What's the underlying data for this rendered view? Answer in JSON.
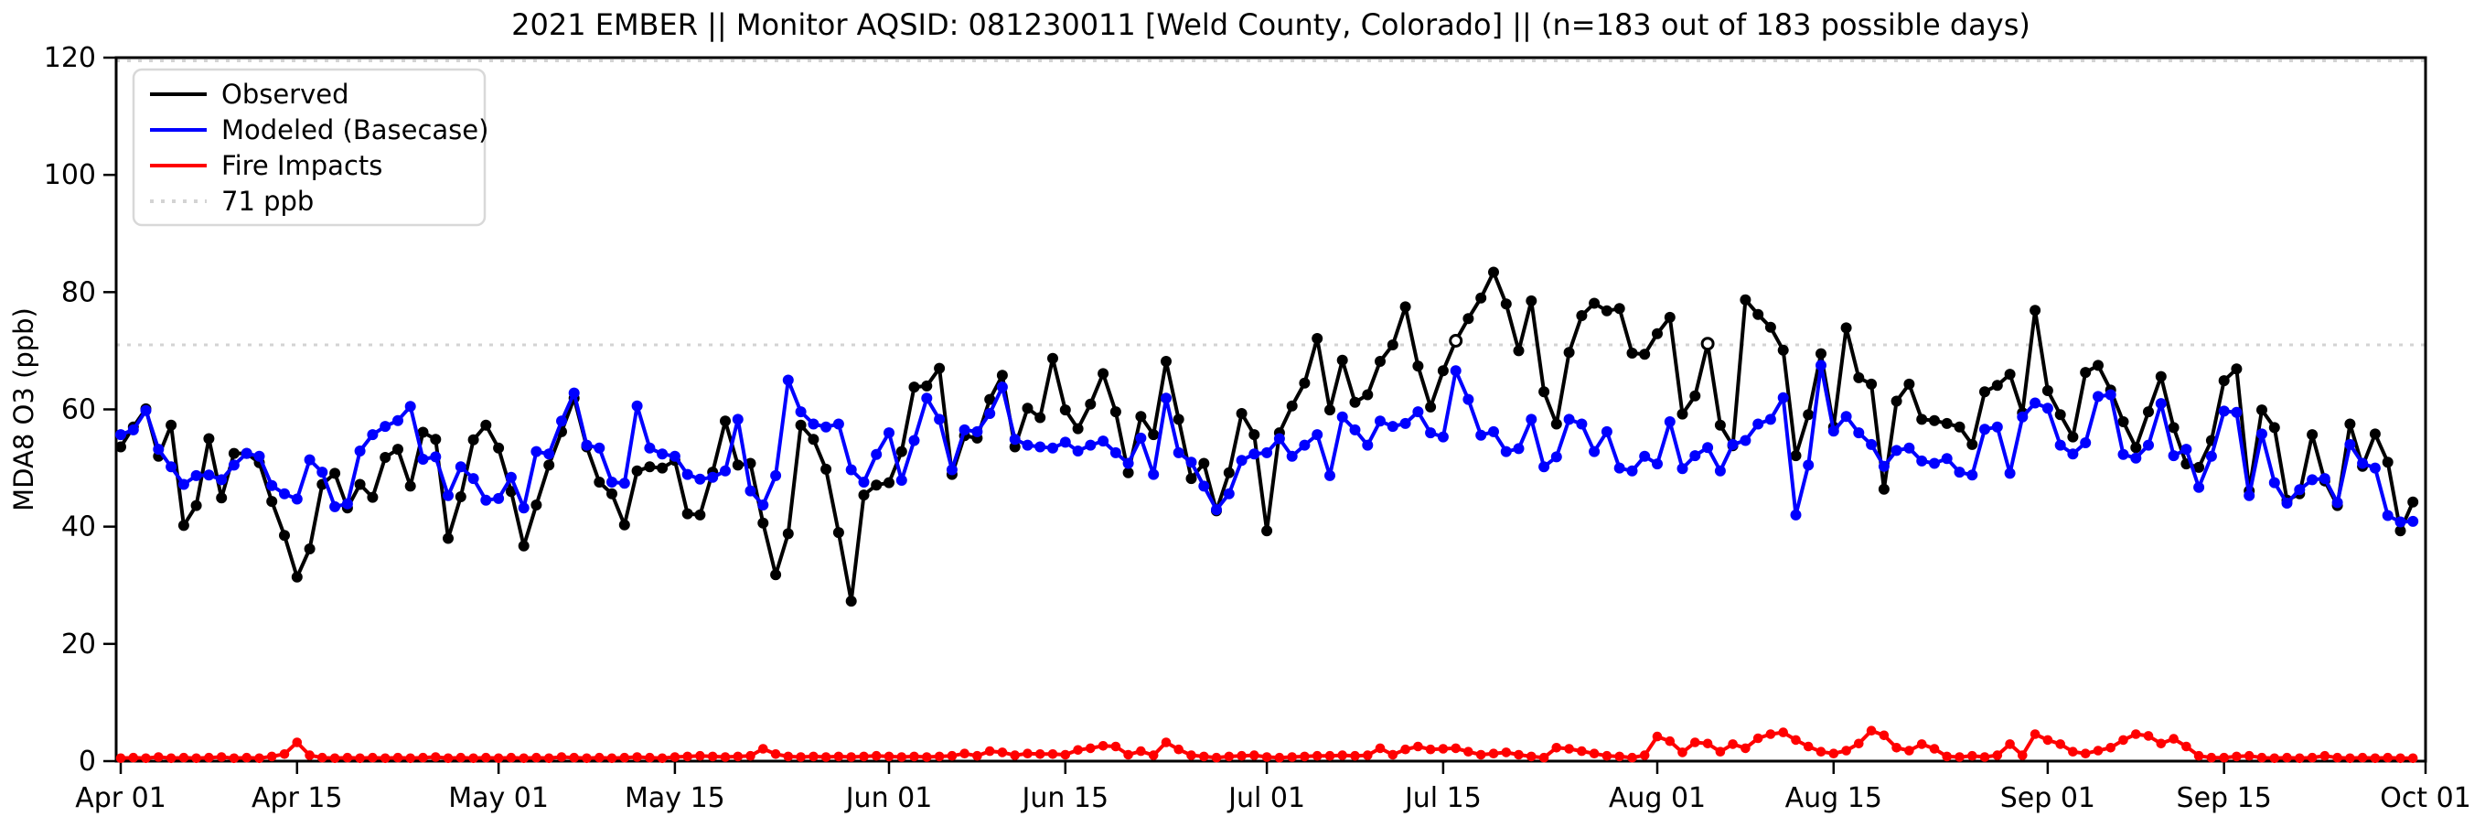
{
  "title": "2021 EMBER || Monitor AQSID: 081230011 [Weld County, Colorado] || (n=183 out of 183 possible days)",
  "axes": {
    "ylabel": "MDA8 O3 (ppb)",
    "ylim": [
      0,
      120
    ],
    "yticks": [
      0,
      20,
      40,
      60,
      80,
      100,
      120
    ],
    "xtick_labels": [
      "Apr 01",
      "Apr 15",
      "May 01",
      "May 15",
      "Jun 01",
      "Jun 15",
      "Jul 01",
      "Jul 15",
      "Aug 01",
      "Aug 15",
      "Sep 01",
      "Sep 15",
      "Oct 01"
    ],
    "xtick_days": [
      0,
      14,
      30,
      44,
      61,
      75,
      91,
      105,
      122,
      136,
      153,
      167,
      183
    ]
  },
  "legend": {
    "items": [
      {
        "label": "Observed",
        "color": "#000000",
        "style": "solid"
      },
      {
        "label": "Modeled (Basecase)",
        "color": "#0000ff",
        "style": "solid"
      },
      {
        "label": "Fire Impacts",
        "color": "#ff0000",
        "style": "solid"
      },
      {
        "label": "71 ppb",
        "color": "#d3d3d3",
        "style": "dotted"
      }
    ]
  },
  "threshold": {
    "value": 71,
    "label": "71 ppb",
    "color": "#d3d3d3"
  },
  "chart_data": {
    "type": "line",
    "x_start_date": "2021-04-01",
    "n_days": 183,
    "x_axis_span_days": 183,
    "grid": false,
    "legend_position": "upper-left",
    "hollow_observed_days": [
      106,
      126
    ],
    "series": [
      {
        "name": "Observed",
        "color": "#000000",
        "values": [
          53.6,
          57.0,
          60.1,
          52.0,
          57.3,
          40.2,
          43.6,
          55.0,
          44.9,
          52.5,
          52.5,
          50.9,
          44.3,
          38.5,
          31.4,
          36.2,
          47.2,
          49.1,
          43.2,
          47.2,
          45.0,
          51.8,
          53.2,
          46.9,
          56.1,
          54.9,
          38.0,
          45.1,
          54.8,
          57.3,
          53.4,
          46.0,
          36.7,
          43.7,
          50.5,
          56.2,
          61.9,
          53.6,
          47.6,
          45.6,
          40.3,
          49.5,
          50.2,
          50.0,
          51.3,
          42.2,
          42.0,
          49.3,
          58.0,
          50.5,
          50.8,
          40.6,
          31.8,
          38.8,
          57.3,
          54.9,
          49.8,
          39.0,
          27.3,
          45.4,
          47.1,
          47.5,
          52.8,
          63.8,
          64.0,
          67.0,
          48.9,
          55.5,
          55.1,
          61.7,
          65.8,
          53.6,
          60.2,
          58.6,
          68.7,
          59.9,
          56.7,
          60.9,
          66.1,
          59.6,
          49.2,
          58.8,
          55.7,
          68.2,
          58.3,
          48.2,
          50.8,
          42.7,
          49.2,
          59.3,
          55.7,
          39.3,
          56.0,
          60.6,
          64.5,
          72.1,
          59.9,
          68.4,
          61.2,
          62.5,
          68.2,
          71.0,
          77.5,
          67.4,
          60.4,
          66.6,
          71.7,
          75.5,
          79.0,
          83.4,
          78.0,
          70.0,
          78.5,
          63.0,
          57.5,
          69.7,
          76.0,
          78.1,
          76.8,
          77.2,
          69.6,
          69.4,
          72.9,
          75.7,
          59.2,
          62.3,
          71.2,
          57.3,
          53.8,
          78.7,
          76.2,
          74.0,
          70.1,
          52.1,
          59.1,
          69.5,
          57.0,
          73.9,
          65.4,
          64.3,
          46.4,
          61.4,
          64.3,
          58.3,
          58.1,
          57.6,
          57.0,
          54.0,
          63.0,
          64.1,
          66.0,
          59.4,
          76.9,
          63.2,
          59.1,
          55.3,
          66.3,
          67.5,
          63.3,
          57.9,
          53.5,
          59.6,
          65.6,
          56.9,
          50.7,
          50.1,
          54.7,
          64.9,
          66.9,
          46.1,
          59.9,
          56.9,
          44.5,
          45.6,
          55.7,
          47.8,
          43.6,
          57.5,
          50.3,
          55.8,
          51.0,
          39.3,
          44.2
        ]
      },
      {
        "name": "Modeled (Basecase)",
        "color": "#0000ff",
        "values": [
          55.7,
          56.5,
          59.8,
          53.2,
          50.2,
          47.2,
          48.7,
          48.8,
          48.0,
          50.5,
          52.5,
          52.0,
          47.0,
          45.6,
          44.7,
          51.4,
          49.3,
          43.4,
          43.9,
          52.9,
          55.7,
          57.1,
          58.1,
          60.5,
          51.5,
          51.9,
          45.3,
          50.2,
          48.2,
          44.5,
          44.8,
          48.4,
          43.2,
          52.8,
          52.4,
          58.0,
          62.8,
          53.9,
          53.4,
          47.6,
          47.4,
          60.6,
          53.4,
          52.4,
          52.0,
          48.9,
          48.1,
          48.4,
          49.5,
          58.3,
          46.1,
          43.7,
          48.7,
          65.0,
          59.6,
          57.5,
          57.0,
          57.5,
          49.7,
          47.6,
          52.3,
          56.0,
          47.9,
          54.7,
          61.9,
          58.3,
          49.7,
          56.5,
          56.2,
          59.3,
          63.8,
          54.9,
          53.9,
          53.6,
          53.4,
          54.4,
          52.9,
          53.9,
          54.6,
          52.6,
          50.8,
          55.1,
          48.9,
          61.9,
          52.6,
          51.0,
          46.9,
          42.9,
          45.6,
          51.3,
          52.4,
          52.6,
          55.0,
          52.0,
          53.9,
          55.7,
          48.7,
          58.7,
          56.5,
          53.9,
          58.0,
          57.1,
          57.6,
          59.6,
          56.0,
          55.3,
          66.6,
          61.7,
          55.6,
          56.2,
          52.8,
          53.3,
          58.3,
          50.2,
          51.9,
          58.3,
          57.5,
          52.8,
          56.2,
          50.0,
          49.5,
          52.0,
          50.7,
          57.9,
          49.9,
          52.1,
          53.5,
          49.5,
          54.0,
          54.7,
          57.5,
          58.3,
          62.0,
          42.0,
          50.5,
          67.5,
          56.3,
          58.8,
          56.0,
          54.0,
          50.3,
          53.0,
          53.4,
          51.2,
          50.8,
          51.6,
          49.3,
          48.8,
          56.6,
          57.0,
          49.1,
          58.7,
          61.1,
          60.2,
          53.9,
          52.4,
          54.3,
          62.2,
          62.5,
          52.3,
          51.7,
          53.9,
          61.0,
          52.1,
          53.2,
          46.7,
          52.0,
          59.7,
          59.5,
          45.3,
          55.8,
          47.5,
          44.0,
          46.3,
          48.0,
          48.2,
          44.1,
          54.0,
          50.8,
          50.0,
          41.9,
          40.8,
          40.9
        ]
      },
      {
        "name": "Fire Impacts",
        "color": "#ff0000",
        "values": [
          0.5,
          0.6,
          0.5,
          0.7,
          0.5,
          0.6,
          0.5,
          0.6,
          0.7,
          0.5,
          0.6,
          0.5,
          0.8,
          1.2,
          3.2,
          1.0,
          0.6,
          0.5,
          0.6,
          0.5,
          0.6,
          0.5,
          0.6,
          0.5,
          0.6,
          0.7,
          0.5,
          0.6,
          0.5,
          0.6,
          0.5,
          0.6,
          0.5,
          0.6,
          0.5,
          0.7,
          0.6,
          0.5,
          0.6,
          0.5,
          0.6,
          0.7,
          0.6,
          0.5,
          0.7,
          0.8,
          0.9,
          0.8,
          0.7,
          0.8,
          0.9,
          2.1,
          1.2,
          0.8,
          0.7,
          0.8,
          0.7,
          0.8,
          0.7,
          0.8,
          0.9,
          0.8,
          0.7,
          0.8,
          0.7,
          0.8,
          0.9,
          1.3,
          0.9,
          1.7,
          1.5,
          1.0,
          1.3,
          1.2,
          1.2,
          1.1,
          1.9,
          2.2,
          2.6,
          2.5,
          1.1,
          1.7,
          1.0,
          3.2,
          2.0,
          1.0,
          0.8,
          0.6,
          0.8,
          0.9,
          1.0,
          0.7,
          0.6,
          0.7,
          0.8,
          0.9,
          0.9,
          1.0,
          0.9,
          1.0,
          2.2,
          1.1,
          2.0,
          2.5,
          2.0,
          2.1,
          2.2,
          1.6,
          1.1,
          1.3,
          1.5,
          1.1,
          0.8,
          0.6,
          2.3,
          2.1,
          1.7,
          1.3,
          0.9,
          0.8,
          0.6,
          1.0,
          4.2,
          3.4,
          1.5,
          3.2,
          3.0,
          1.6,
          2.9,
          2.2,
          3.9,
          4.6,
          4.9,
          3.6,
          2.5,
          1.6,
          1.3,
          1.8,
          3.0,
          5.2,
          4.4,
          2.3,
          1.8,
          2.9,
          2.1,
          0.8,
          0.7,
          0.9,
          0.7,
          1.0,
          2.9,
          1.0,
          4.6,
          3.6,
          2.9,
          1.6,
          1.3,
          1.8,
          2.3,
          3.6,
          4.6,
          4.3,
          3.0,
          3.8,
          2.5,
          0.9,
          0.6,
          0.6,
          0.8,
          0.9,
          0.6,
          0.5,
          0.6,
          0.5,
          0.6,
          0.9,
          0.6,
          0.5,
          0.6,
          0.5,
          0.6,
          0.5,
          0.5
        ]
      }
    ]
  }
}
